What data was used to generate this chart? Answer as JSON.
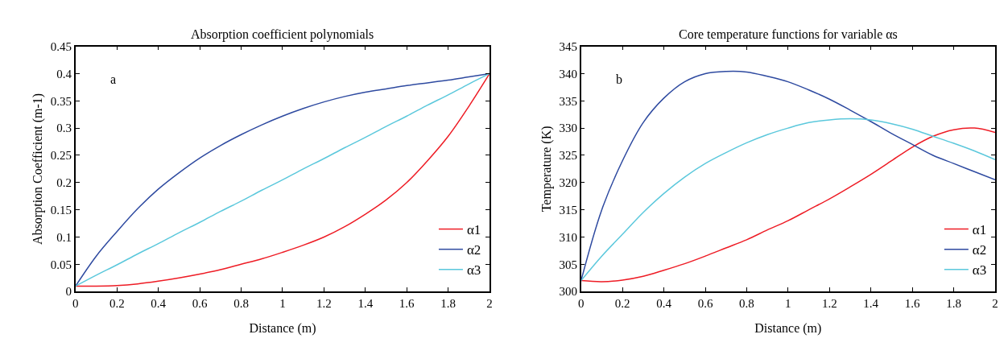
{
  "chart_data": [
    {
      "type": "line",
      "title": "Absorption coefficient polynomials",
      "xlabel": "Distance (m)",
      "ylabel": "Absorption Coefficient (m-1)",
      "annotations": [
        "a"
      ],
      "x": [
        0,
        0.1,
        0.2,
        0.3,
        0.4,
        0.5,
        0.6,
        0.7,
        0.8,
        0.9,
        1,
        1.1,
        1.2,
        1.3,
        1.4,
        1.5,
        1.6,
        1.7,
        1.8,
        1.9,
        2
      ],
      "series": [
        {
          "name": "α1",
          "color": "#ee1c25",
          "values": [
            0.01,
            0.01,
            0.011,
            0.014,
            0.019,
            0.025,
            0.032,
            0.04,
            0.05,
            0.06,
            0.072,
            0.085,
            0.1,
            0.119,
            0.142,
            0.168,
            0.2,
            0.24,
            0.285,
            0.34,
            0.4
          ]
        },
        {
          "name": "α2",
          "color": "#2e4aa0",
          "values": [
            0.01,
            0.065,
            0.11,
            0.152,
            0.188,
            0.218,
            0.245,
            0.268,
            0.288,
            0.306,
            0.322,
            0.336,
            0.348,
            0.358,
            0.366,
            0.372,
            0.378,
            0.383,
            0.388,
            0.394,
            0.4
          ]
        },
        {
          "name": "α3",
          "color": "#5bc8dc",
          "values": [
            0.01,
            0.03,
            0.049,
            0.069,
            0.088,
            0.108,
            0.127,
            0.147,
            0.166,
            0.186,
            0.205,
            0.225,
            0.244,
            0.264,
            0.283,
            0.303,
            0.322,
            0.342,
            0.361,
            0.381,
            0.4
          ]
        }
      ],
      "xlim": [
        0,
        2
      ],
      "xticks": [
        0,
        0.2,
        0.4,
        0.6,
        0.8,
        1,
        1.2,
        1.4,
        1.6,
        1.8,
        2
      ],
      "ylim": [
        0,
        0.45
      ],
      "yticks": [
        0,
        0.05,
        0.1,
        0.15,
        0.2,
        0.25,
        0.3,
        0.35,
        0.4,
        0.45
      ],
      "legend": "bottom right",
      "marker": "none",
      "line_style": "solid"
    },
    {
      "type": "line",
      "title": "Core temperature functions for variable αs",
      "xlabel": "Distance (m)",
      "ylabel": "Temperature (K)",
      "annotations": [
        "b"
      ],
      "x": [
        0,
        0.1,
        0.2,
        0.3,
        0.4,
        0.5,
        0.6,
        0.7,
        0.8,
        0.9,
        1,
        1.1,
        1.2,
        1.3,
        1.4,
        1.5,
        1.6,
        1.7,
        1.8,
        1.9,
        2
      ],
      "series": [
        {
          "name": "α1",
          "color": "#ee1c25",
          "values": [
            302,
            301.8,
            302.1,
            302.8,
            303.9,
            305.1,
            306.5,
            308,
            309.5,
            311.3,
            313,
            315,
            317,
            319.2,
            321.5,
            324,
            326.5,
            328.5,
            329.7,
            330,
            329.2
          ]
        },
        {
          "name": "α2",
          "color": "#2e4aa0",
          "values": [
            302,
            315,
            324,
            331,
            335.5,
            338.5,
            340,
            340.4,
            340.3,
            339.5,
            338.5,
            337,
            335.3,
            333.3,
            331.2,
            329,
            327,
            325,
            323.5,
            322,
            320.5
          ]
        },
        {
          "name": "α3",
          "color": "#5bc8dc",
          "values": [
            302,
            306.5,
            310.5,
            314.5,
            318,
            321,
            323.5,
            325.5,
            327.3,
            328.8,
            330,
            331,
            331.5,
            331.7,
            331.5,
            330.8,
            329.8,
            328.5,
            327.2,
            325.8,
            324.2
          ]
        }
      ],
      "xlim": [
        0,
        2
      ],
      "xticks": [
        0,
        0.2,
        0.4,
        0.6,
        0.8,
        1,
        1.2,
        1.4,
        1.6,
        1.8,
        2
      ],
      "ylim": [
        300,
        345
      ],
      "yticks": [
        300,
        305,
        310,
        315,
        320,
        325,
        330,
        335,
        340,
        345
      ],
      "legend": "bottom right",
      "marker": "none",
      "line_style": "solid"
    }
  ]
}
